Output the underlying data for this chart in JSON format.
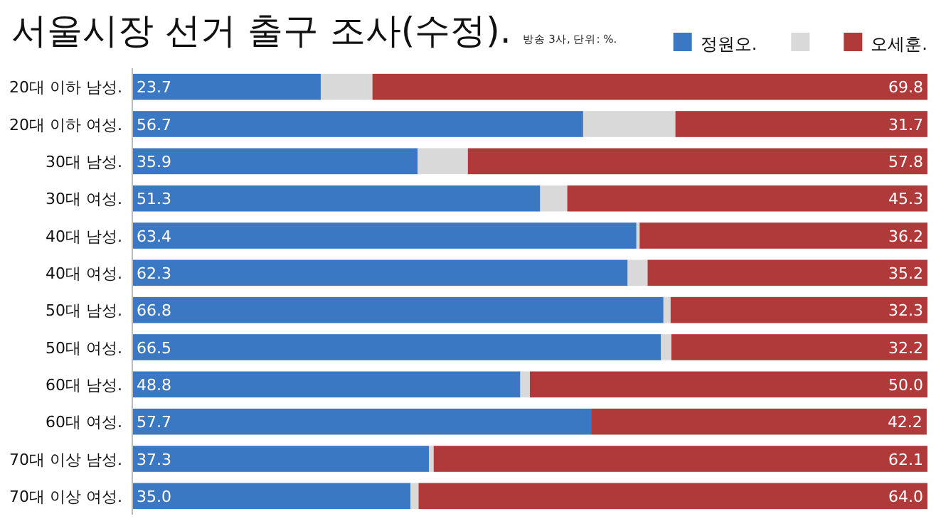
{
  "chart_data": {
    "type": "bar",
    "orientation": "horizontal",
    "stacked": true,
    "title": "서울시장 선거 출구 조사(수정).",
    "subtitle": "방송 3사, 단위: %.",
    "categories": [
      "20대 이하 남성.",
      "20대 이하 여성.",
      "30대 남성.",
      "30대 여성.",
      "40대 남성.",
      "40대 여성.",
      "50대 남성.",
      "50대 여성.",
      "60대 남성.",
      "60대 여성.",
      "70대 이상 남성.",
      "70대 이상 여성."
    ],
    "series": [
      {
        "name": "정원오.",
        "color": "#3a78c3",
        "values": [
          23.7,
          56.7,
          35.9,
          51.3,
          63.4,
          62.3,
          66.8,
          66.5,
          48.8,
          57.7,
          37.3,
          35.0
        ],
        "value_labels": [
          "23.7",
          "56.7",
          "35.9",
          "51.3",
          "63.4",
          "62.3",
          "66.8",
          "66.5",
          "48.8",
          "57.7",
          "37.3",
          "35.0"
        ]
      },
      {
        "color": "#d9d9d9",
        "values": [
          6.5,
          11.6,
          6.3,
          3.4,
          0.4,
          2.5,
          0.9,
          1.3,
          1.2,
          null,
          0.6,
          1.0
        ]
      },
      {
        "name": "오세훈.",
        "color": "#b03a3a",
        "values": [
          69.8,
          31.7,
          57.8,
          45.3,
          36.2,
          35.2,
          32.3,
          32.2,
          50.0,
          42.2,
          62.1,
          64.0
        ],
        "value_labels": [
          "69.8",
          "31.7",
          "57.8",
          "45.3",
          "36.2",
          "35.2",
          "32.3",
          "32.2",
          "50.0",
          "42.2",
          "62.1",
          "64.0"
        ]
      }
    ],
    "xlim": [
      0,
      100
    ],
    "tick_labels": "y",
    "legend": "top right"
  }
}
